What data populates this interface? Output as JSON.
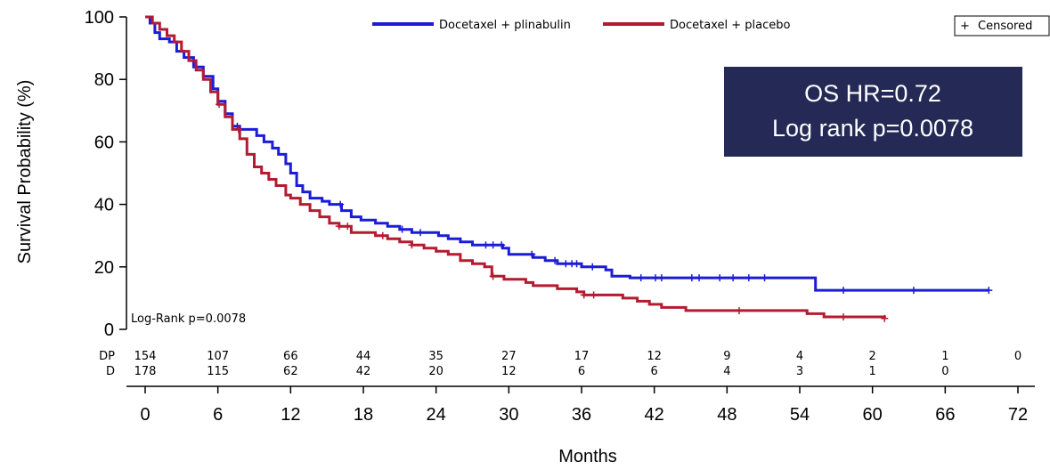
{
  "chart_data": {
    "type": "line",
    "title": "",
    "xlabel": "Months",
    "ylabel": "Survival Probability (%)",
    "xlim": [
      0,
      72
    ],
    "ylim": [
      0,
      100
    ],
    "x_ticks": [
      "0",
      "6",
      "12",
      "18",
      "24",
      "30",
      "36",
      "42",
      "48",
      "54",
      "60",
      "66",
      "72"
    ],
    "y_ticks": [
      "0",
      "20",
      "40",
      "60",
      "80",
      "100"
    ],
    "grid": false,
    "legend": {
      "placement": "top",
      "entries": [
        "Docetaxel + plinabulin",
        "Docetaxel + placebo"
      ],
      "censored_label": "Censored",
      "censored_symbol": "+"
    },
    "annotation_box": {
      "line1": "OS HR=0.72",
      "line2": "Log rank p=0.0078",
      "background": "#242a55"
    },
    "log_rank_label": "Log-Rank p=0.0078",
    "series": [
      {
        "name": "Docetaxel + plinabulin",
        "color": "#1c1cd8",
        "steps": [
          [
            0,
            100
          ],
          [
            0.4,
            98
          ],
          [
            0.8,
            95
          ],
          [
            1.2,
            93
          ],
          [
            2,
            92
          ],
          [
            2.6,
            89
          ],
          [
            3.2,
            87
          ],
          [
            4,
            84
          ],
          [
            4.8,
            81
          ],
          [
            5.6,
            77
          ],
          [
            6,
            73
          ],
          [
            6.6,
            69
          ],
          [
            7.2,
            65
          ],
          [
            7.8,
            64
          ],
          [
            9.2,
            62
          ],
          [
            9.8,
            60
          ],
          [
            10.5,
            58
          ],
          [
            11,
            56
          ],
          [
            11.6,
            53
          ],
          [
            12,
            50
          ],
          [
            12.5,
            46
          ],
          [
            13,
            44
          ],
          [
            13.6,
            42
          ],
          [
            14.6,
            41
          ],
          [
            15.2,
            40
          ],
          [
            16.2,
            38
          ],
          [
            17,
            36
          ],
          [
            17.8,
            35
          ],
          [
            19,
            34
          ],
          [
            20,
            33
          ],
          [
            21,
            32
          ],
          [
            22,
            31
          ],
          [
            24.2,
            30
          ],
          [
            25,
            29
          ],
          [
            26,
            28
          ],
          [
            27,
            27
          ],
          [
            29.5,
            26
          ],
          [
            30,
            24
          ],
          [
            32,
            23
          ],
          [
            33,
            22
          ],
          [
            34,
            21
          ],
          [
            36,
            20
          ],
          [
            38,
            19
          ],
          [
            38.5,
            17
          ],
          [
            40,
            16.5
          ],
          [
            55,
            16.5
          ],
          [
            55.3,
            12.5
          ],
          [
            69.6,
            12.5
          ]
        ],
        "censor_x": [
          7.6,
          16.1,
          21.2,
          22.7,
          28.1,
          28.7,
          29.4,
          31.9,
          33.8,
          34.7,
          35.2,
          35.6,
          36.9,
          40.9,
          42.1,
          42.6,
          45.1,
          45.7,
          47.4,
          48.5,
          49.8,
          51.1,
          57.6,
          63.4,
          69.6
        ]
      },
      {
        "name": "Docetaxel + placebo",
        "color": "#b31b30",
        "steps": [
          [
            0,
            100
          ],
          [
            0.6,
            98
          ],
          [
            1.2,
            96
          ],
          [
            1.8,
            94
          ],
          [
            2.4,
            92
          ],
          [
            3,
            89
          ],
          [
            3.6,
            86
          ],
          [
            4.2,
            83
          ],
          [
            4.8,
            80
          ],
          [
            5.4,
            76
          ],
          [
            6,
            72
          ],
          [
            6.6,
            68
          ],
          [
            7.2,
            64
          ],
          [
            7.8,
            61
          ],
          [
            8.4,
            56
          ],
          [
            9,
            52
          ],
          [
            9.6,
            50
          ],
          [
            10.2,
            48
          ],
          [
            10.8,
            46
          ],
          [
            11.6,
            43
          ],
          [
            12,
            42
          ],
          [
            12.8,
            40
          ],
          [
            13.6,
            38
          ],
          [
            14.4,
            36
          ],
          [
            15.2,
            34
          ],
          [
            16,
            33
          ],
          [
            17,
            31
          ],
          [
            19,
            30
          ],
          [
            20,
            29
          ],
          [
            21,
            28
          ],
          [
            22,
            27
          ],
          [
            23,
            26
          ],
          [
            24,
            25
          ],
          [
            25,
            24
          ],
          [
            26,
            22
          ],
          [
            27,
            21
          ],
          [
            28,
            20
          ],
          [
            28.6,
            17
          ],
          [
            29.6,
            16
          ],
          [
            31.4,
            15
          ],
          [
            32,
            14
          ],
          [
            34,
            13
          ],
          [
            35.6,
            12
          ],
          [
            36.2,
            11
          ],
          [
            39.4,
            10
          ],
          [
            40.6,
            9
          ],
          [
            41.6,
            8
          ],
          [
            42.6,
            7
          ],
          [
            44.6,
            6
          ],
          [
            54.6,
            5
          ],
          [
            56,
            4
          ],
          [
            61,
            3.5
          ]
        ],
        "censor_x": [
          6.1,
          7.7,
          16.0,
          16.7,
          19.6,
          22.0,
          28.7,
          36.2,
          37.0,
          49.0,
          57.6,
          61.0
        ]
      }
    ],
    "risk_table": {
      "time_points": [
        0,
        6,
        12,
        18,
        24,
        30,
        36,
        42,
        48,
        54,
        60,
        66,
        72
      ],
      "rows": [
        {
          "label": "DP",
          "counts": [
            "154",
            "107",
            "66",
            "44",
            "35",
            "27",
            "17",
            "12",
            "9",
            "4",
            "2",
            "1",
            "0"
          ]
        },
        {
          "label": "D",
          "counts": [
            "178",
            "115",
            "62",
            "42",
            "20",
            "12",
            "6",
            "6",
            "4",
            "3",
            "1",
            "0",
            ""
          ]
        }
      ]
    }
  }
}
